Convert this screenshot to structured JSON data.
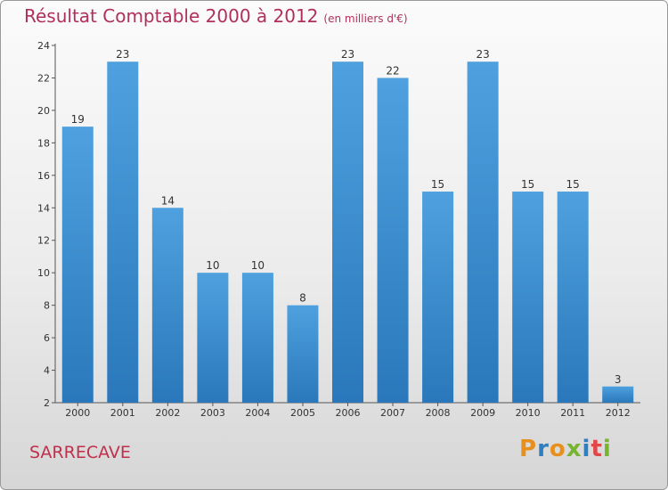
{
  "header": {
    "title": "Résultat Comptable 2000 à 2012",
    "subtitle": "(en milliers d'€)"
  },
  "commune": "SARRECAVE",
  "brand": {
    "letters": [
      "P",
      "r",
      "o",
      "x",
      "i",
      "t",
      "i"
    ],
    "colors": [
      "#e8901e",
      "#2f7fc0",
      "#e8901e",
      "#78b52e",
      "#2f7fc0",
      "#e24646",
      "#78b52e"
    ]
  },
  "colors": {
    "bar": "#4ea1de",
    "bar_dark": "#2a78bb",
    "title": "#b0305a"
  },
  "chart_data": {
    "type": "bar",
    "title": "Résultat Comptable 2000 à 2012",
    "xlabel": "",
    "ylabel": "",
    "categories": [
      "2000",
      "2001",
      "2002",
      "2003",
      "2004",
      "2005",
      "2006",
      "2007",
      "2008",
      "2009",
      "2010",
      "2011",
      "2012"
    ],
    "values": [
      19,
      23,
      14,
      10,
      10,
      8,
      23,
      22,
      15,
      23,
      15,
      15,
      3
    ],
    "ylim": [
      2,
      24
    ],
    "yticks": [
      2,
      4,
      6,
      8,
      10,
      12,
      14,
      16,
      18,
      20,
      22,
      24
    ],
    "grid": false
  }
}
